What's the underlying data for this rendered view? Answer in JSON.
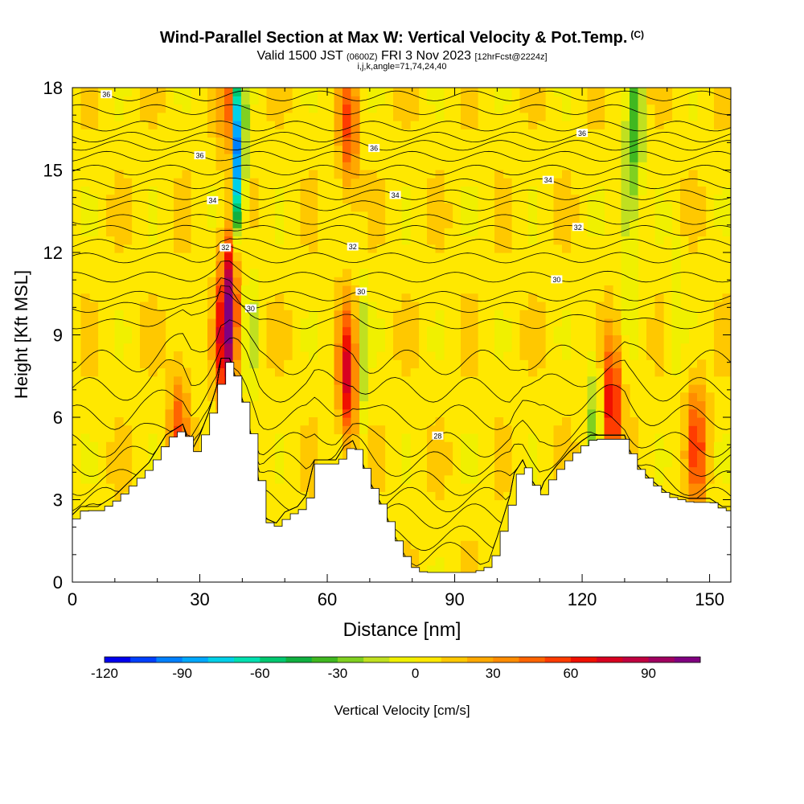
{
  "title": {
    "main": "Wind-Parallel Section at Max W: Vertical Velocity & Pot.Temp.",
    "copyright": "(C)",
    "valid_prefix": "Valid 1500 JST",
    "valid_utc": "(0600Z)",
    "valid_date": "FRI 3 Nov 2023",
    "forecast": "[12hrFcst@2224z]",
    "meta": "i,j,k,angle=71,74,24,40"
  },
  "chart_data": {
    "type": "heatmap",
    "xlabel": "Distance [nm]",
    "ylabel": "Height [Kft MSL]",
    "xlim": [
      0,
      155
    ],
    "ylim": [
      0,
      18
    ],
    "x_ticks": [
      0,
      30,
      60,
      90,
      120,
      150
    ],
    "y_ticks": [
      0,
      3,
      6,
      9,
      12,
      15,
      18
    ],
    "colorbar": {
      "label": "Vertical Velocity [cm/s]",
      "min": -120,
      "max": 110,
      "step": 10,
      "tick_values": [
        -120,
        -90,
        -60,
        -30,
        0,
        30,
        60,
        90
      ],
      "colors": [
        "#0000ee",
        "#0040ff",
        "#0080ff",
        "#00a8ff",
        "#00d0e8",
        "#00e0b0",
        "#00c870",
        "#10b040",
        "#40b820",
        "#80d020",
        "#c0e020",
        "#f0f000",
        "#ffe800",
        "#ffc800",
        "#ffa800",
        "#ff8c00",
        "#ff6400",
        "#ff3c00",
        "#f01000",
        "#d80020",
        "#c00040",
        "#a00060",
        "#800080"
      ]
    },
    "terrain": [
      [
        0,
        2.3
      ],
      [
        2,
        2.6
      ],
      [
        6,
        2.6
      ],
      [
        10,
        3.0
      ],
      [
        14,
        3.6
      ],
      [
        18,
        4.2
      ],
      [
        22,
        5.2
      ],
      [
        26,
        5.6
      ],
      [
        28,
        4.6
      ],
      [
        30,
        5.2
      ],
      [
        32,
        6.0
      ],
      [
        34,
        7.0
      ],
      [
        35,
        8.0
      ],
      [
        37,
        8.0
      ],
      [
        39,
        7.0
      ],
      [
        41,
        6.0
      ],
      [
        43,
        4.5
      ],
      [
        45,
        2.2
      ],
      [
        48,
        2.0
      ],
      [
        50,
        2.4
      ],
      [
        53,
        2.6
      ],
      [
        55,
        3.0
      ],
      [
        57,
        4.3
      ],
      [
        60,
        4.3
      ],
      [
        62,
        4.3
      ],
      [
        64,
        4.8
      ],
      [
        66,
        5.0
      ],
      [
        68,
        4.3
      ],
      [
        70,
        3.5
      ],
      [
        73,
        2.6
      ],
      [
        76,
        1.5
      ],
      [
        79,
        0.6
      ],
      [
        82,
        0.35
      ],
      [
        86,
        0.35
      ],
      [
        90,
        0.35
      ],
      [
        94,
        0.35
      ],
      [
        98,
        0.6
      ],
      [
        100,
        1.5
      ],
      [
        103,
        3.0
      ],
      [
        104,
        3.8
      ],
      [
        106,
        4.3
      ],
      [
        108,
        3.6
      ],
      [
        110,
        3.1
      ],
      [
        111,
        3.5
      ],
      [
        114,
        4.1
      ],
      [
        117,
        4.6
      ],
      [
        120,
        5.0
      ],
      [
        122,
        5.2
      ],
      [
        124,
        5.2
      ],
      [
        127,
        5.2
      ],
      [
        130,
        5.2
      ],
      [
        131,
        4.7
      ],
      [
        133,
        4.1
      ],
      [
        136,
        3.6
      ],
      [
        140,
        3.1
      ],
      [
        145,
        2.9
      ],
      [
        150,
        2.9
      ],
      [
        153,
        2.6
      ],
      [
        155,
        2.6
      ]
    ],
    "updrafts": [
      {
        "x": 37,
        "y": 10.5,
        "value": 75
      },
      {
        "x": 36,
        "y": 8.2,
        "value": 60
      },
      {
        "x": 65,
        "y": 7.5,
        "value": 70
      },
      {
        "x": 127,
        "y": 6.5,
        "value": 65
      },
      {
        "x": 147,
        "y": 5.0,
        "value": 50
      },
      {
        "x": 25,
        "y": 5.5,
        "value": 40
      },
      {
        "x": 65,
        "y": 16.5,
        "value": 45
      },
      {
        "x": 37,
        "y": 17.5,
        "value": 45
      }
    ],
    "downdrafts": [
      {
        "x": 39,
        "y": 14.5,
        "value": -60
      },
      {
        "x": 39,
        "y": 17.0,
        "value": -80
      },
      {
        "x": 68,
        "y": 8.0,
        "value": -30
      },
      {
        "x": 123,
        "y": 6.0,
        "value": -35
      },
      {
        "x": 131,
        "y": 14.0,
        "value": -40
      },
      {
        "x": 133,
        "y": 17.0,
        "value": -45
      },
      {
        "x": 42,
        "y": 9.0,
        "value": -20
      },
      {
        "x": 142,
        "y": 10.0,
        "value": -15
      }
    ],
    "isentropes": [
      {
        "theta": 36,
        "y_base": 17.7,
        "label": "36",
        "label_x": 8
      },
      {
        "theta": 36,
        "y_base": 17.2,
        "label": "",
        "label_x": null
      },
      {
        "theta": 36,
        "y_base": 16.6,
        "label": "",
        "label_x": null
      },
      {
        "theta": 36,
        "y_base": 16.2,
        "label": "36",
        "label_x": 120
      },
      {
        "theta": 36,
        "y_base": 15.9,
        "label": "36",
        "label_x": 71
      },
      {
        "theta": 36,
        "y_base": 15.5,
        "label": "36",
        "label_x": 30
      },
      {
        "theta": 36,
        "y_base": 15.0,
        "label": "",
        "label_x": null
      },
      {
        "theta": 34,
        "y_base": 14.5,
        "label": "34",
        "label_x": 112
      },
      {
        "theta": 34,
        "y_base": 14.1,
        "label": "34",
        "label_x": 76
      },
      {
        "theta": 34,
        "y_base": 13.7,
        "label": "34",
        "label_x": 33
      },
      {
        "theta": 32,
        "y_base": 13.2,
        "label": "",
        "label_x": null
      },
      {
        "theta": 32,
        "y_base": 12.8,
        "label": "32",
        "label_x": 119
      },
      {
        "theta": 32,
        "y_base": 12.3,
        "label": "32",
        "label_x": 66
      },
      {
        "theta": 32,
        "y_base": 11.8,
        "label": "32",
        "label_x": 36
      },
      {
        "theta": 30,
        "y_base": 11.1,
        "label": "30",
        "label_x": 114
      },
      {
        "theta": 30,
        "y_base": 10.4,
        "label": "30",
        "label_x": 68
      },
      {
        "theta": 30,
        "y_base": 10.0,
        "label": "30",
        "label_x": 42
      },
      {
        "theta": 30,
        "y_base": 9.4,
        "label": "",
        "label_x": null
      },
      {
        "theta": 28,
        "y_base": 8.0,
        "label": "",
        "label_x": null
      },
      {
        "theta": 28,
        "y_base": 7.0,
        "label": "",
        "label_x": null
      },
      {
        "theta": 28,
        "y_base": 6.0,
        "label": "",
        "label_x": null
      },
      {
        "theta": 28,
        "y_base": 5.0,
        "label": "28",
        "label_x": 86
      },
      {
        "theta": 28,
        "y_base": 4.3,
        "label": "",
        "label_x": null
      },
      {
        "theta": 28,
        "y_base": 3.6,
        "label": "",
        "label_x": null
      },
      {
        "theta": 28,
        "y_base": 3.0,
        "label": "",
        "label_x": null
      },
      {
        "theta": 28,
        "y_base": 2.4,
        "label": "",
        "label_x": null
      },
      {
        "theta": 28,
        "y_base": 1.6,
        "label": "",
        "label_x": null
      },
      {
        "theta": 28,
        "y_base": 1.0,
        "label": "",
        "label_x": null
      }
    ]
  }
}
